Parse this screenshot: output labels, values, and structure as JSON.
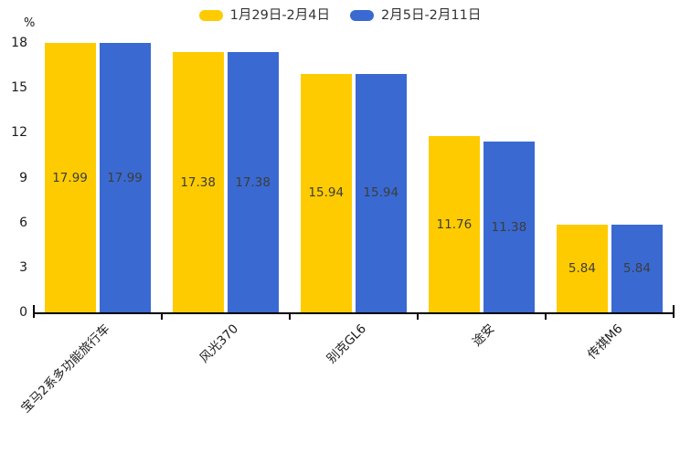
{
  "chart_data": {
    "type": "bar",
    "title": "",
    "xlabel": "",
    "ylabel": "%",
    "ylim": [
      0,
      18
    ],
    "yticks": [
      0,
      3,
      6,
      9,
      12,
      15,
      18
    ],
    "grid": false,
    "legend_position": "top-center",
    "value_labels": "inside-center",
    "categories": [
      "宝马2系多功能旅行车",
      "风光370",
      "别克GL6",
      "途安",
      "传祺M6"
    ],
    "series": [
      {
        "name": "1月29日-2月4日",
        "color": "#FECB00",
        "values": [
          17.99,
          17.38,
          15.94,
          11.76,
          5.84
        ]
      },
      {
        "name": "2月5日-2月11日",
        "color": "#3A69D1",
        "values": [
          17.99,
          17.38,
          15.94,
          11.38,
          5.84
        ]
      }
    ]
  },
  "colors": {
    "background": "#ffffff",
    "axis": "#000000",
    "value_label_text": "#3d3d3d",
    "axis_label_text": "#1a1a1a",
    "legend_text": "#333333"
  }
}
